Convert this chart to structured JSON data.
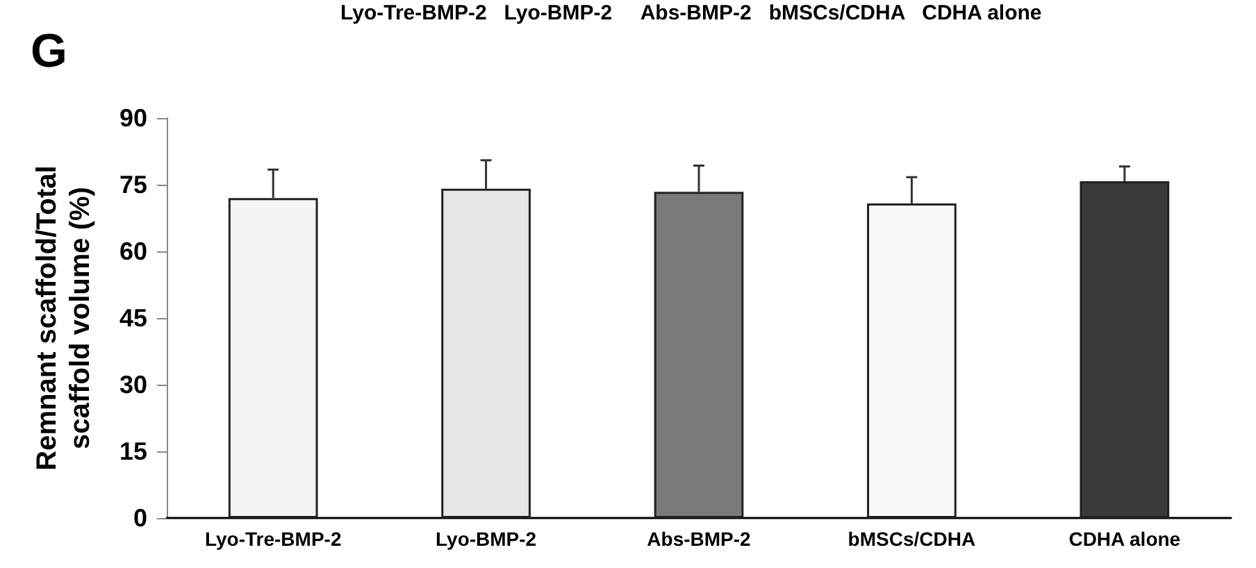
{
  "chart_data": {
    "type": "bar",
    "categories": [
      "Lyo-Tre-BMP-2",
      "Lyo-BMP-2",
      "Abs-BMP-2",
      "bMSCs/CDHA",
      "CDHA alone"
    ],
    "values": [
      72.0,
      74.1,
      73.4,
      70.8,
      75.8
    ],
    "errors": [
      [
        72.0,
        78.4
      ],
      [
        74.1,
        80.5
      ],
      [
        73.4,
        79.3
      ],
      [
        70.8,
        76.7
      ],
      [
        75.8,
        79.1
      ]
    ],
    "colors": [
      "#f4f4f4",
      "#e6e6e6",
      "#7a7a7a",
      "#f8f8f8",
      "#3a3a3a"
    ],
    "ylabel": "Remnant scaffold/Total\nscaffold volume (%)",
    "ylim": [
      0,
      90
    ],
    "yticks": [
      0,
      15,
      30,
      45,
      60,
      75,
      90
    ],
    "annotations": [
      "G",
      "Lyo-Tre-BMP-2   Lyo-BMP-2     Abs-BMP-2   bMSCs/CDHA   CDHA alone"
    ],
    "grid": false
  }
}
